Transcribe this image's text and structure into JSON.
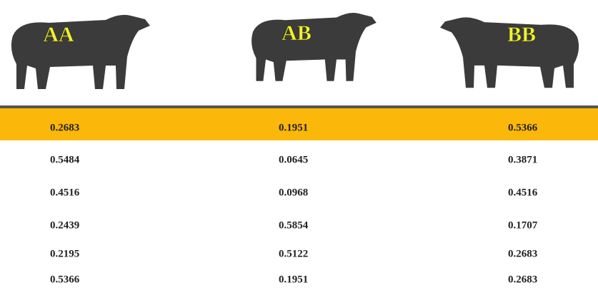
{
  "columns": [
    "AA",
    "AB",
    "BB"
  ],
  "table": {
    "rows": [
      [
        "0.2683",
        "0.1951",
        "0.5366"
      ],
      [
        "0.5484",
        "0.0645",
        "0.3871"
      ],
      [
        "0.4516",
        "0.0968",
        "0.4516"
      ],
      [
        "0.2439",
        "0.5854",
        "0.1707"
      ],
      [
        "0.2195",
        "0.5122",
        "0.2683"
      ],
      [
        "0.5366",
        "0.1951",
        "0.2683"
      ]
    ]
  }
}
